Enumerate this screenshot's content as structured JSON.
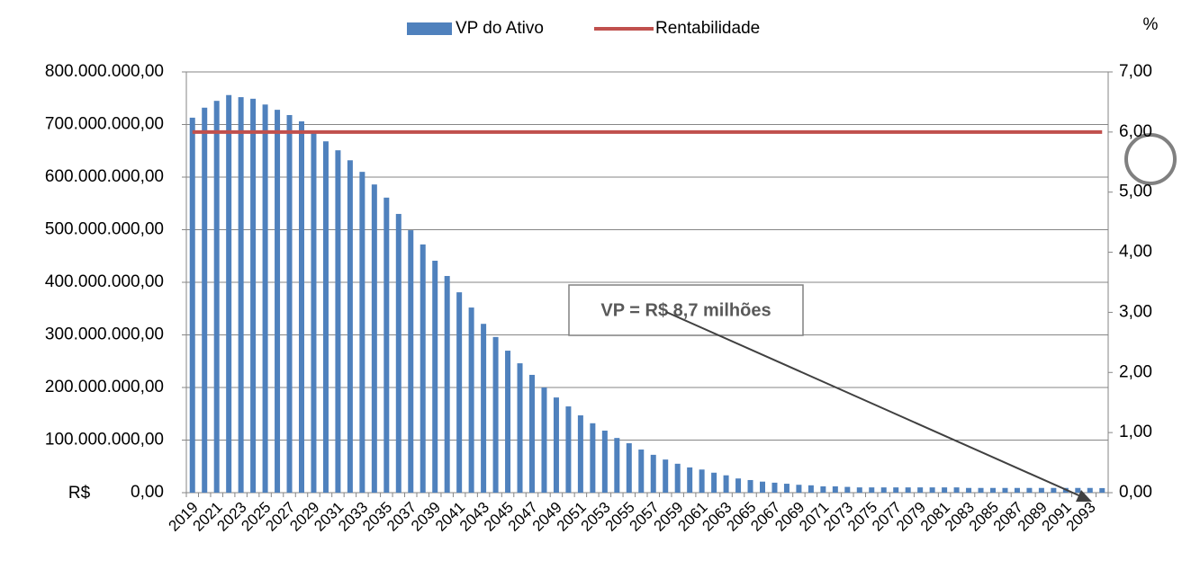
{
  "chart_data": {
    "type": "bar",
    "categories": [
      "2019",
      null,
      "2021",
      null,
      "2023",
      null,
      "2025",
      null,
      "2027",
      null,
      "2029",
      null,
      "2031",
      null,
      "2033",
      null,
      "2035",
      null,
      "2037",
      null,
      "2039",
      null,
      "2041",
      null,
      "2043",
      null,
      "2045",
      null,
      "2047",
      null,
      "2049",
      null,
      "2051",
      null,
      "2053",
      null,
      "2055",
      null,
      "2057",
      null,
      "2059",
      null,
      "2061",
      null,
      "2063",
      null,
      "2065",
      null,
      "2067",
      null,
      "2069",
      null,
      "2071",
      null,
      "2073",
      null,
      "2075",
      null,
      "2077",
      null,
      "2079",
      null,
      "2081",
      null,
      "2083",
      null,
      "2085",
      null,
      "2087",
      null,
      "2089",
      null,
      "2091",
      null,
      "2093",
      null
    ],
    "series": [
      {
        "name": "VP do Ativo",
        "color": "#4f81bd",
        "values": [
          713000000,
          732000000,
          745000000,
          756000000,
          752000000,
          749000000,
          738000000,
          728000000,
          718000000,
          706000000,
          684000000,
          668000000,
          651000000,
          632000000,
          610000000,
          586000000,
          561000000,
          530000000,
          499000000,
          472000000,
          441000000,
          412000000,
          381000000,
          352000000,
          321000000,
          296000000,
          270000000,
          246000000,
          224000000,
          200000000,
          181000000,
          164000000,
          147000000,
          132000000,
          118000000,
          104000000,
          94000000,
          82000000,
          72000000,
          63000000,
          55000000,
          48000000,
          44000000,
          38000000,
          33000000,
          27000000,
          24000000,
          21000000,
          19000000,
          17000000,
          15000000,
          14000000,
          12000000,
          12000000,
          11000000,
          10000000,
          10000000,
          10000000,
          10000000,
          10000000,
          10000000,
          10000000,
          10000000,
          10000000,
          9000000,
          9000000,
          9000000,
          9000000,
          9000000,
          9000000,
          9000000,
          9000000,
          9000000,
          9000000,
          9000000,
          8700000
        ]
      },
      {
        "name": "Rentabilidade",
        "color": "#c0504d",
        "axis": "y2",
        "type": "line",
        "values": [
          6,
          6,
          6,
          6,
          6,
          6,
          6,
          6,
          6,
          6,
          6,
          6,
          6,
          6,
          6,
          6,
          6,
          6,
          6,
          6,
          6,
          6,
          6,
          6,
          6,
          6,
          6,
          6,
          6,
          6,
          6,
          6,
          6,
          6,
          6,
          6,
          6,
          6,
          6,
          6,
          6,
          6,
          6,
          6,
          6,
          6,
          6,
          6,
          6,
          6,
          6,
          6,
          6,
          6,
          6,
          6,
          6,
          6,
          6,
          6,
          6,
          6,
          6,
          6,
          6,
          6,
          6,
          6,
          6,
          6,
          6,
          6,
          6,
          6,
          6,
          6
        ]
      }
    ],
    "ylim": [
      0,
      800000000
    ],
    "yticks": [
      {
        "value": 0,
        "label": "0,00"
      },
      {
        "value": 100000000,
        "label": "100.000.000,00"
      },
      {
        "value": 200000000,
        "label": "200.000.000,00"
      },
      {
        "value": 300000000,
        "label": "300.000.000,00"
      },
      {
        "value": 400000000,
        "label": "400.000.000,00"
      },
      {
        "value": 500000000,
        "label": "500.000.000,00"
      },
      {
        "value": 600000000,
        "label": "600.000.000,00"
      },
      {
        "value": 700000000,
        "label": "700.000.000,00"
      },
      {
        "value": 800000000,
        "label": "800.000.000,00"
      }
    ],
    "y2lim": [
      0,
      7
    ],
    "y2ticks": [
      {
        "value": 0,
        "label": "0,00"
      },
      {
        "value": 1,
        "label": "1,00"
      },
      {
        "value": 2,
        "label": "2,00"
      },
      {
        "value": 3,
        "label": "3,00"
      },
      {
        "value": 4,
        "label": "4,00"
      },
      {
        "value": 5,
        "label": "5,00"
      },
      {
        "value": 6,
        "label": "6,00"
      },
      {
        "value": 7,
        "label": "7,00"
      }
    ],
    "y_label": "R$",
    "y2_label": "%",
    "annotation": "VP = R$ 8,7 milhões",
    "grid": true,
    "legend": "top"
  }
}
